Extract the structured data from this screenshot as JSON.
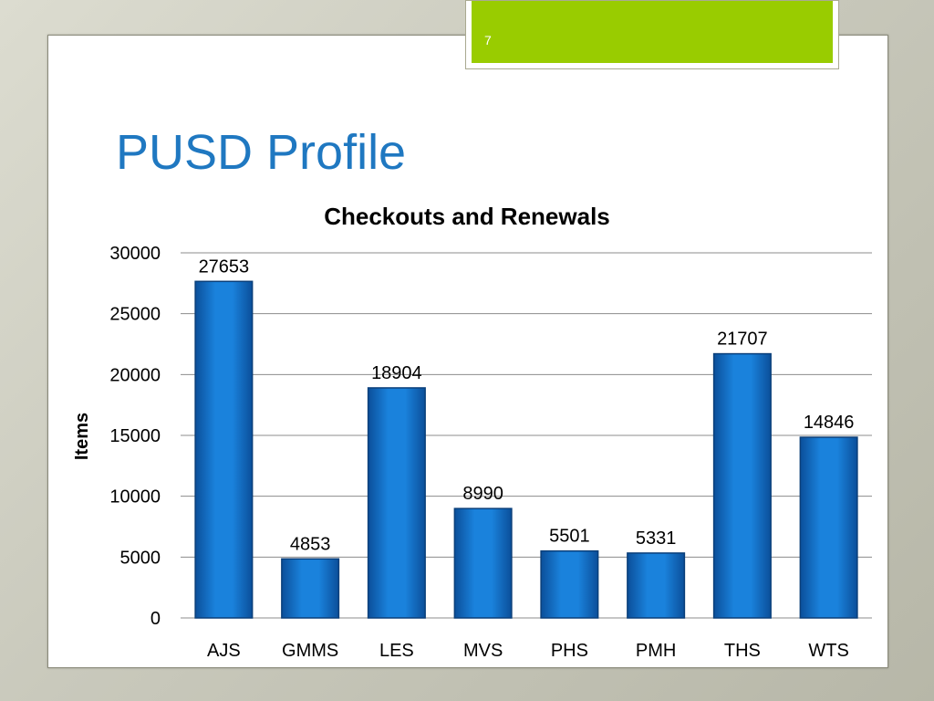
{
  "slide": {
    "number": "7",
    "title": "PUSD Profile",
    "accent_color": "#99cc00",
    "title_color": "#1f78c1"
  },
  "chart_data": {
    "type": "bar",
    "title": "Checkouts and Renewals",
    "xlabel": "",
    "ylabel": "Items",
    "categories": [
      "AJS",
      "GMMS",
      "LES",
      "MVS",
      "PHS",
      "PMH",
      "THS",
      "WTS"
    ],
    "values": [
      27653,
      4853,
      18904,
      8990,
      5501,
      5331,
      21707,
      14846
    ],
    "ylim": [
      0,
      30000
    ],
    "yticks": [
      "0",
      "5000",
      "10000",
      "15000",
      "20000",
      "25000",
      "30000"
    ],
    "grid": true,
    "legend": "none",
    "bar_color": "#0f6fc6"
  }
}
